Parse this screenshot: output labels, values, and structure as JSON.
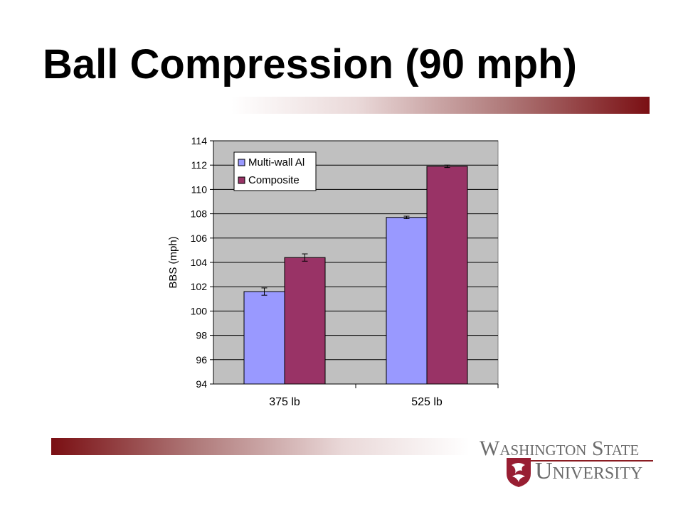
{
  "slide": {
    "title": "Ball Compression (90 mph)"
  },
  "logo": {
    "line1": "Washington State",
    "line2": "University",
    "seal_icon": "wsu-cougar-seal-icon",
    "color": "#981e32"
  },
  "chart_data": {
    "type": "bar",
    "title": "",
    "xlabel": "",
    "ylabel": "BBS (mph)",
    "categories": [
      "375 lb",
      "525 lb"
    ],
    "ylim": [
      94,
      114
    ],
    "yticks": [
      94,
      96,
      98,
      100,
      102,
      104,
      106,
      108,
      110,
      112,
      114
    ],
    "grid": true,
    "legend_position": "top-left",
    "plot_background": "#c0c0c0",
    "series": [
      {
        "name": "Multi-wall Al",
        "color": "#9999ff",
        "values": [
          101.6,
          107.7
        ],
        "errors": [
          0.3,
          0.1
        ]
      },
      {
        "name": "Composite",
        "color": "#993366",
        "values": [
          104.4,
          111.9
        ],
        "errors": [
          0.3,
          0.1
        ]
      }
    ]
  }
}
